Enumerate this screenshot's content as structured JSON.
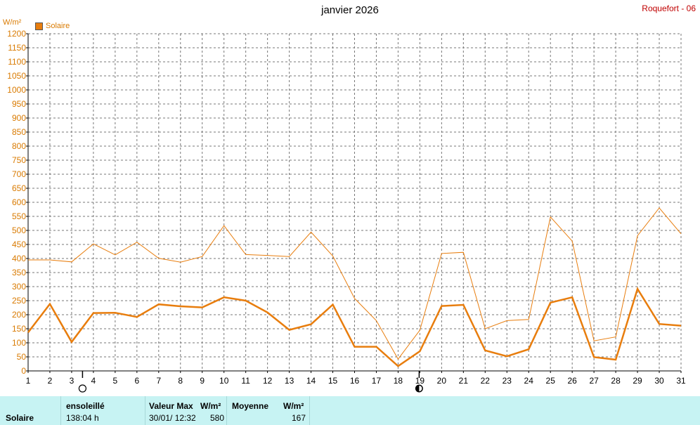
{
  "header": {
    "title": "janvier 2026",
    "station": "Roquefort - 06",
    "unit": "W/m²",
    "legend_label": "Solaire"
  },
  "colors": {
    "series": "#e87d0d",
    "unit_text": "#d97a00",
    "station_text": "#c00000",
    "footer_bg": "#c7f3f3"
  },
  "moon": {
    "full_moon_day": 3,
    "new_moon_day": 19
  },
  "chart_data": {
    "type": "line",
    "title": "janvier 2026",
    "ylabel": "W/m²",
    "xlim": [
      1,
      31
    ],
    "ylim": [
      0,
      1200
    ],
    "ytick_step": 50,
    "grid": true,
    "legend": "top-left",
    "x": [
      1,
      2,
      3,
      4,
      5,
      6,
      7,
      8,
      9,
      10,
      11,
      12,
      13,
      14,
      15,
      16,
      17,
      18,
      19,
      20,
      21,
      22,
      23,
      24,
      25,
      26,
      27,
      28,
      29,
      30,
      31
    ],
    "series": [
      {
        "name": "Solaire",
        "role": "max",
        "values": [
          395,
          395,
          388,
          452,
          413,
          458,
          401,
          387,
          407,
          517,
          414,
          411,
          407,
          494,
          409,
          258,
          179,
          42,
          145,
          418,
          422,
          150,
          179,
          183,
          548,
          462,
          107,
          121,
          481,
          580,
          488
        ]
      },
      {
        "name": "Solaire",
        "role": "average",
        "values": [
          137,
          238,
          103,
          206,
          207,
          192,
          237,
          230,
          226,
          262,
          250,
          208,
          146,
          166,
          236,
          86,
          86,
          17,
          70,
          231,
          235,
          73,
          52,
          77,
          243,
          262,
          49,
          40,
          292,
          167,
          161
        ]
      }
    ]
  },
  "footer": {
    "row_label": "Solaire",
    "sun_header": "ensoleillé",
    "sun_value": "138:04 h",
    "max_header": "Valeur Max",
    "max_unit": "W/m²",
    "max_date": "30/01/  12:32",
    "max_value": "580",
    "avg_header": "Moyenne",
    "avg_unit": "W/m²",
    "avg_value": "167"
  }
}
